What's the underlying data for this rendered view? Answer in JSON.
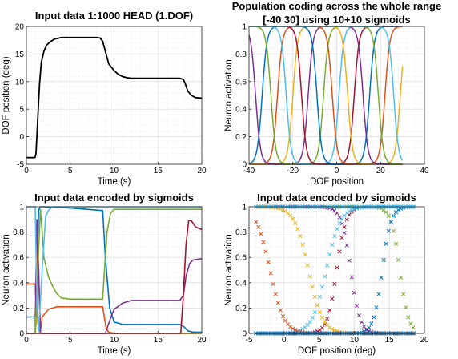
{
  "colors": [
    "#0072BD",
    "#D95319",
    "#EDB120",
    "#7E2F8E",
    "#77AC30",
    "#4DBEEE",
    "#A2142F"
  ],
  "chart_data": [
    {
      "type": "line",
      "title": "Input data 1:1000 HEAD (1.DOF)",
      "xlabel": "Time (s)",
      "ylabel": "DOF position (deg)",
      "xlim": [
        0,
        20
      ],
      "ylim": [
        -5,
        20
      ],
      "xticks": [
        0,
        5,
        10,
        15,
        20
      ],
      "yticks": [
        -5,
        0,
        5,
        10,
        15,
        20
      ],
      "grid": true,
      "series": [
        {
          "x": [
            0,
            0.9,
            1.0,
            1.1,
            1.2,
            1.35,
            1.5,
            1.7,
            2.0,
            2.3,
            2.7,
            3.2,
            4.0,
            5.0,
            8.0,
            8.4,
            8.7,
            9.0,
            9.4,
            10.0,
            10.5,
            11.0,
            11.5,
            12.0,
            14.0,
            17.5,
            17.9,
            18.1,
            18.4,
            18.8,
            19.3,
            20.0
          ],
          "y": [
            -3.8,
            -3.8,
            -3.7,
            -3.0,
            0.0,
            5.0,
            9.5,
            13.5,
            15.5,
            16.6,
            17.2,
            17.7,
            18.0,
            18.0,
            18.0,
            17.9,
            17.3,
            15.5,
            13.2,
            12.0,
            11.3,
            10.9,
            10.7,
            10.6,
            10.6,
            10.6,
            10.4,
            9.7,
            8.3,
            7.5,
            7.1,
            7.0
          ]
        }
      ]
    },
    {
      "type": "line",
      "title": "Population coding across the whole range",
      "subtitle": "[-40 30] using 10+10 sigmoids",
      "xlabel": "DOF position",
      "ylabel": "Neuron activation",
      "xlim": [
        -40,
        40
      ],
      "ylim": [
        0,
        1
      ],
      "xticks": [
        -40,
        -20,
        0,
        20,
        40
      ],
      "yticks": [
        0,
        0.2,
        0.4,
        0.6,
        0.8,
        1
      ],
      "grid": true,
      "x_range": [
        -40,
        30
      ],
      "rising_centers": [
        -34,
        -27,
        -20,
        -13,
        -6,
        1,
        8,
        15,
        22,
        29
      ],
      "falling_centers": [
        -37,
        -30,
        -23,
        -16,
        -9,
        -2,
        5,
        12,
        19,
        26
      ],
      "slope": 0.9
    },
    {
      "type": "line",
      "title": "Input data encoded by sigmoids",
      "xlabel": "Time (s)",
      "ylabel": "Neuron activation",
      "xlim": [
        0,
        20
      ],
      "ylim": [
        0,
        1
      ],
      "xticks": [
        0,
        5,
        10,
        15,
        20
      ],
      "yticks": [
        0,
        0.2,
        0.4,
        0.6,
        0.8,
        1
      ],
      "grid": true,
      "series": [
        {
          "x": [
            0,
            1.0,
            1.2,
            1.4,
            1.5,
            1.6,
            2.0,
            5.0,
            8.7,
            9.0,
            9.5,
            10.0,
            11.0,
            12.0,
            17.5,
            18.0,
            18.4,
            19.0,
            20.0
          ],
          "y": [
            0.13,
            0.13,
            0.5,
            0.97,
            0.99,
            1.0,
            1.0,
            0.99,
            0.97,
            0.6,
            0.2,
            0.09,
            0.07,
            0.07,
            0.07,
            0.05,
            0.02,
            0.01,
            0.01
          ]
        },
        {
          "x": [
            0,
            1.0,
            1.15,
            1.3,
            1.45,
            1.6,
            1.8,
            2.5,
            3.5,
            4.5,
            8.7,
            8.9,
            9.1,
            9.4,
            10.0,
            20.0
          ],
          "y": [
            0.39,
            0.39,
            0.12,
            0.72,
            0.35,
            0.02,
            0.13,
            0.19,
            0.21,
            0.21,
            0.21,
            0.12,
            0.04,
            0.01,
            0.0,
            0.0
          ]
        },
        {
          "x": [
            0,
            1.0,
            1.2,
            1.5,
            1.8,
            20.0
          ],
          "y": [
            0.0,
            0.0,
            0.12,
            0.01,
            0.0,
            0.0
          ]
        },
        {
          "x": [
            0,
            1.0,
            1.2,
            1.4,
            1.6,
            9.0,
            9.5,
            10.0,
            11.0,
            12.0,
            17.5,
            17.9,
            18.2,
            18.6,
            19.0,
            20.0
          ],
          "y": [
            0.0,
            0.0,
            0.9,
            0.5,
            0.0,
            0.0,
            0.1,
            0.19,
            0.24,
            0.26,
            0.26,
            0.3,
            0.45,
            0.55,
            0.58,
            0.59
          ]
        },
        {
          "x": [
            0,
            1.0,
            1.3,
            1.6,
            1.8,
            2.0,
            2.5,
            3.0,
            3.5,
            4.0,
            5.0,
            8.7,
            8.9,
            9.2,
            9.6,
            10.0,
            20.0
          ],
          "y": [
            0.0,
            0.0,
            0.5,
            0.98,
            0.8,
            0.6,
            0.45,
            0.37,
            0.31,
            0.28,
            0.27,
            0.27,
            0.5,
            0.8,
            0.95,
            0.98,
            0.98
          ]
        },
        {
          "x": [
            0,
            1.0,
            1.2,
            1.4,
            1.8,
            2.2,
            2.5,
            3.0,
            20.0
          ],
          "y": [
            1.0,
            1.0,
            0.3,
            0.02,
            0.5,
            0.93,
            0.97,
            1.0,
            1.0
          ]
        },
        {
          "x": [
            0,
            17.6,
            17.9,
            18.2,
            18.5,
            18.8,
            19.3,
            20.0
          ],
          "y": [
            0.0,
            0.0,
            0.3,
            0.7,
            0.89,
            0.89,
            0.84,
            0.82
          ]
        }
      ]
    },
    {
      "type": "scatter",
      "title": "Input data encoded by sigmoids",
      "xlabel": "DOF position (deg)",
      "ylabel": "Neuron activation",
      "xlim": [
        -5,
        20
      ],
      "ylim": [
        0,
        1
      ],
      "xticks": [
        -5,
        0,
        5,
        10,
        15,
        20
      ],
      "yticks": [
        0,
        0.2,
        0.4,
        0.6,
        0.8,
        1
      ],
      "grid": true,
      "marker": "x",
      "x_range": [
        -4,
        18.5
      ]
    }
  ]
}
